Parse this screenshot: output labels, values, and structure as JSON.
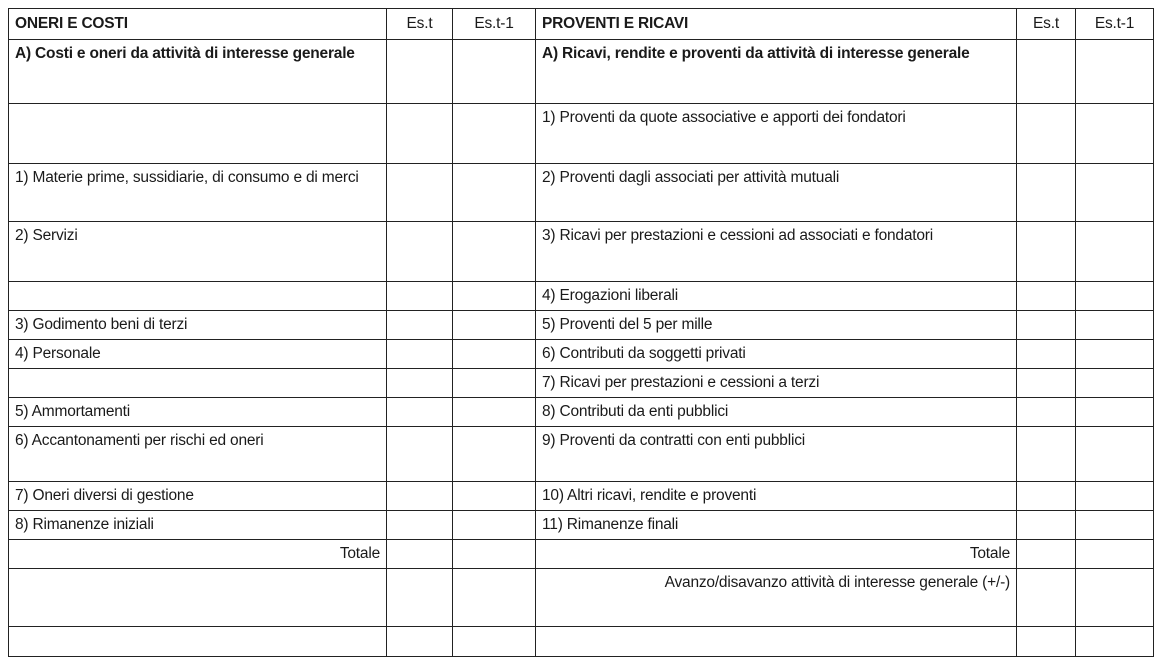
{
  "header": {
    "left_title": "ONERI E COSTI",
    "right_title": "PROVENTI E RICAVI",
    "col_current": "Es.t",
    "col_previous": "Es.t-1"
  },
  "rows": [
    {
      "left": "A) Costi e oneri da attività di interesse generale",
      "right": "A) Ricavi, rendite e proventi da attività di interesse generale",
      "bold": true,
      "h": 64
    },
    {
      "left": "",
      "right": "1) Proventi da quote associative e apporti dei fondatori",
      "h": 60
    },
    {
      "left": "1) Materie prime, sussidiarie, di consumo e di merci",
      "right": "2) Proventi dagli associati per attività mutuali",
      "h": 58
    },
    {
      "left": "2) Servizi",
      "right": "3)  Ricavi per prestazioni e cessioni ad associati e fondatori",
      "h": 60
    },
    {
      "left": "",
      "right": "4) Erogazioni liberali",
      "h": 28
    },
    {
      "left": "3) Godimento beni di terzi",
      "right": "5) Proventi del 5 per mille",
      "h": 29
    },
    {
      "left": "4) Personale",
      "right": "6) Contributi da soggetti privati",
      "h": 28
    },
    {
      "left": "",
      "right": "7) Ricavi per prestazioni e cessioni a terzi",
      "h": 29
    },
    {
      "left": "5) Ammortamenti",
      "right": "8) Contributi da enti pubblici",
      "h": 28
    },
    {
      "left": "6) Accantonamenti per rischi ed oneri",
      "right": "9) Proventi da contratti con enti pubblici",
      "h": 55
    },
    {
      "left": "7) Oneri diversi di gestione",
      "right": "10) Altri ricavi, rendite e proventi",
      "h": 28
    },
    {
      "left": "8) Rimanenze iniziali",
      "right": "11) Rimanenze finali",
      "h": 28
    },
    {
      "left": "Totale",
      "right": "Totale",
      "align": "right",
      "h": 29
    },
    {
      "left": "",
      "right": "Avanzo/disavanzo attività di interesse generale (+/-)",
      "align": "right",
      "h": 58
    },
    {
      "left": "",
      "right": "",
      "h": 30
    }
  ]
}
